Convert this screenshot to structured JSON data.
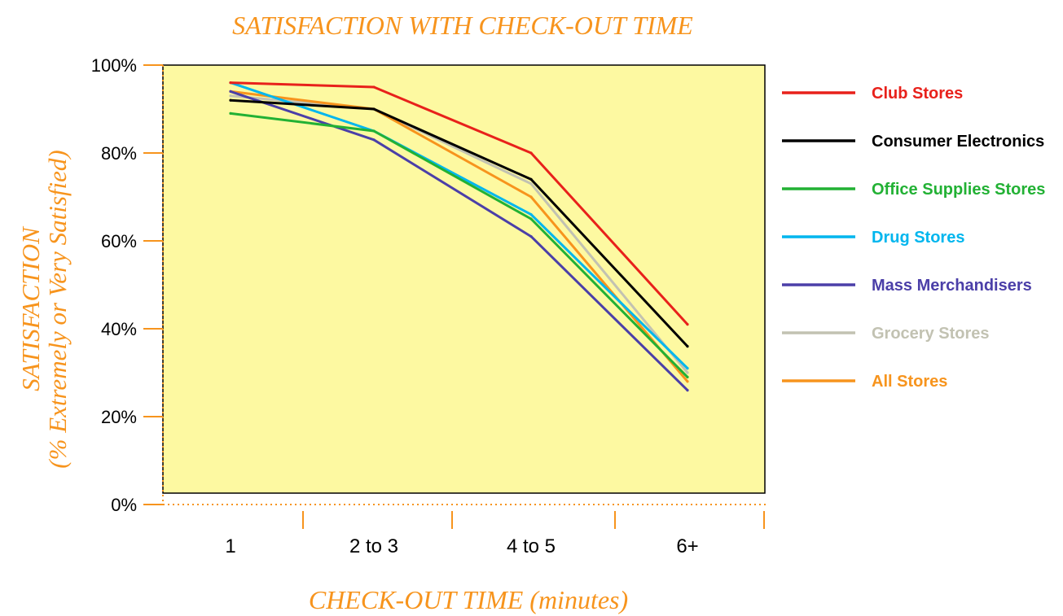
{
  "chart_data": {
    "type": "line",
    "title": "SATISFACTION WITH CHECK-OUT TIME",
    "xlabel": "CHECK-OUT TIME (minutes)",
    "ylabel": "SATISFACTION",
    "ylabel_sub": "(% Extremely or Very Satisfied)",
    "categories": [
      "1",
      "2 to 3",
      "4 to 5",
      "6+"
    ],
    "y_ticks": [
      "0%",
      "20%",
      "40%",
      "60%",
      "80%",
      "100%"
    ],
    "y_tick_values": [
      0,
      20,
      40,
      60,
      80,
      100
    ],
    "ylim": [
      0,
      100
    ],
    "legend_position": "right",
    "plot_background": "#fdf9a1",
    "grid": false,
    "series": [
      {
        "name": "Club Stores",
        "color": "#e8211b",
        "values": [
          96,
          95,
          80,
          41
        ]
      },
      {
        "name": "Consumer Electronics",
        "color": "#000000",
        "values": [
          92,
          90,
          74,
          36
        ]
      },
      {
        "name": "Office Supplies Stores",
        "color": "#22b134",
        "values": [
          89,
          85,
          65,
          29
        ]
      },
      {
        "name": "Drug Stores",
        "color": "#00b6ee",
        "values": [
          96,
          85,
          66,
          31
        ]
      },
      {
        "name": "Mass Merchandisers",
        "color": "#4b3fa8",
        "values": [
          94,
          83,
          61,
          26
        ]
      },
      {
        "name": "Grocery Stores",
        "color": "#c2c2b2",
        "values": [
          93,
          90,
          73,
          30
        ]
      },
      {
        "name": "All Stores",
        "color": "#f7941d",
        "values": [
          94,
          90,
          70,
          28
        ]
      }
    ]
  }
}
